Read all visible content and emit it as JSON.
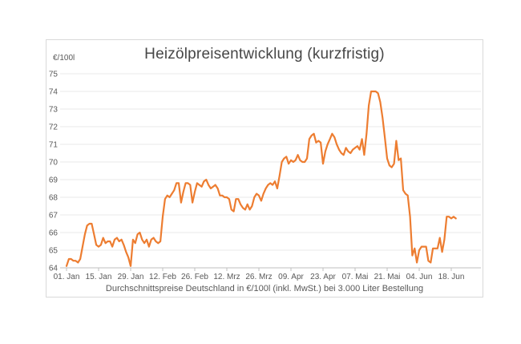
{
  "page": {
    "background": "#FFFFFF"
  },
  "chart": {
    "title": "Heizölpreisentwicklung (kurzfristig)",
    "y_unit_label": "€/100l",
    "footnote": "Durchschnittspreise Deutschland in €/100l (inkl. MwSt.) bei 3.000 Liter Bestellung"
  },
  "colors": {
    "line": "#ED7D31",
    "grid": "#E8E8E8",
    "axis": "#BFBFBF",
    "tick_text": "#595959",
    "title_text": "#474747",
    "border": "#D9D9D9"
  },
  "chart_data": {
    "type": "line",
    "title": "Heizölpreisentwicklung (kurzfristig)",
    "xlabel": "",
    "ylabel": "€/100l",
    "ylim": [
      64,
      75
    ],
    "y_ticks": [
      64,
      65,
      66,
      67,
      68,
      69,
      70,
      71,
      72,
      73,
      74,
      75
    ],
    "x_tick_labels": [
      "01. Jan",
      "15. Jan",
      "29. Jan",
      "12. Feb",
      "26. Feb",
      "12. Mrz",
      "26. Mrz",
      "09. Apr",
      "23. Apr",
      "07. Mai",
      "21. Mai",
      "04. Jun",
      "18. Jun"
    ],
    "x_tick_interval_days": 14,
    "grid": "horizontal",
    "legend": "none",
    "footnote": "Durchschnittspreise Deutschland in €/100l (inkl. MwSt.) bei 3.000 Liter Bestellung",
    "series": [
      {
        "name": "Heizölpreis",
        "color": "#ED7D31",
        "start_label": "01. Jan",
        "values": [
          64.1,
          64.5,
          64.5,
          64.4,
          64.4,
          64.3,
          64.5,
          65.2,
          65.9,
          66.4,
          66.5,
          66.5,
          65.9,
          65.3,
          65.2,
          65.3,
          65.7,
          65.4,
          65.5,
          65.5,
          65.2,
          65.6,
          65.7,
          65.5,
          65.6,
          65.3,
          64.9,
          64.6,
          64.1,
          65.6,
          65.4,
          65.9,
          66.0,
          65.6,
          65.4,
          65.6,
          65.2,
          65.6,
          65.7,
          65.5,
          65.4,
          65.5,
          66.9,
          67.9,
          68.1,
          68.0,
          68.2,
          68.4,
          68.8,
          68.8,
          67.7,
          68.3,
          68.8,
          68.8,
          68.7,
          67.7,
          68.3,
          68.8,
          68.7,
          68.6,
          68.9,
          69.0,
          68.7,
          68.5,
          68.6,
          68.7,
          68.5,
          68.1,
          68.1,
          68.0,
          68.0,
          67.9,
          67.3,
          67.2,
          67.9,
          67.9,
          67.6,
          67.4,
          67.3,
          67.6,
          67.3,
          67.5,
          68.0,
          68.2,
          68.1,
          67.8,
          68.2,
          68.5,
          68.7,
          68.8,
          68.7,
          68.9,
          68.5,
          69.2,
          70.0,
          70.2,
          70.3,
          69.9,
          70.1,
          70.0,
          70.1,
          70.4,
          70.1,
          70.0,
          70.0,
          70.2,
          71.3,
          71.5,
          71.6,
          71.1,
          71.2,
          71.1,
          69.9,
          70.6,
          71.0,
          71.3,
          71.6,
          71.4,
          71.0,
          70.7,
          70.5,
          70.4,
          70.8,
          70.6,
          70.5,
          70.7,
          70.8,
          70.9,
          70.7,
          71.3,
          70.4,
          71.6,
          73.2,
          74.0,
          74.0,
          74.0,
          73.9,
          73.4,
          72.5,
          71.4,
          70.2,
          69.8,
          69.7,
          69.9,
          71.2,
          70.1,
          70.2,
          68.4,
          68.2,
          68.1,
          66.9,
          64.7,
          65.1,
          64.3,
          65.0,
          65.2,
          65.2,
          65.2,
          64.4,
          64.3,
          65.1,
          65.1,
          65.1,
          65.7,
          64.9,
          65.6,
          66.9,
          66.9,
          66.8,
          66.9,
          66.8
        ]
      }
    ]
  }
}
